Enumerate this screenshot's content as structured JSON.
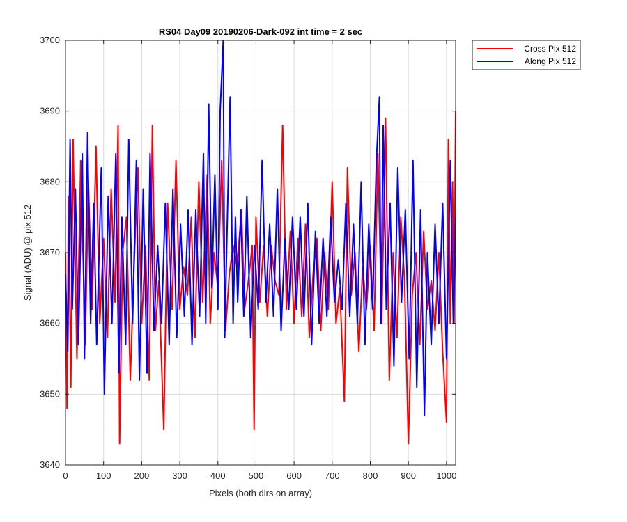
{
  "chart_data": {
    "type": "line",
    "title": "RS04 Day09 20190206-Dark-092 int time = 2 sec",
    "xlabel": "Pixels (both dirs on array)",
    "ylabel": "Signal (ADU) @ pix 512",
    "xlim": [
      0,
      1024
    ],
    "ylim": [
      3640,
      3700
    ],
    "xticks": [
      0,
      100,
      200,
      300,
      400,
      500,
      600,
      700,
      800,
      900,
      1000
    ],
    "yticks": [
      3640,
      3650,
      3660,
      3670,
      3680,
      3690,
      3700
    ],
    "grid": true,
    "legend": "outside-top-right",
    "series": [
      {
        "name": "Cross Pix 512",
        "color": "#ff0000",
        "x": [
          0,
          4,
          8,
          14,
          20,
          30,
          40,
          52,
          60,
          70,
          80,
          90,
          100,
          110,
          120,
          130,
          138,
          142,
          150,
          160,
          170,
          180,
          190,
          200,
          210,
          220,
          228,
          236,
          245,
          258,
          268,
          280,
          290,
          300,
          310,
          320,
          330,
          340,
          350,
          360,
          372,
          380,
          390,
          400,
          410,
          420,
          430,
          440,
          450,
          462,
          470,
          480,
          490,
          495,
          500,
          510,
          520,
          530,
          540,
          550,
          560,
          570,
          580,
          590,
          600,
          610,
          620,
          630,
          640,
          650,
          660,
          670,
          680,
          690,
          700,
          710,
          720,
          732,
          740,
          750,
          760,
          770,
          780,
          790,
          800,
          810,
          820,
          830,
          840,
          850,
          860,
          870,
          880,
          890,
          900,
          910,
          920,
          930,
          940,
          950,
          960,
          970,
          980,
          990,
          1000,
          1005,
          1010,
          1016,
          1020,
          1024
        ],
        "values": [
          3670,
          3648,
          3678,
          3651,
          3686,
          3655,
          3683,
          3657,
          3680,
          3662,
          3685,
          3660,
          3672,
          3658,
          3679,
          3663,
          3688,
          3643,
          3670,
          3675,
          3652,
          3668,
          3682,
          3660,
          3671,
          3652,
          3688,
          3659,
          3666,
          3645,
          3677,
          3662,
          3683,
          3662,
          3668,
          3664,
          3675,
          3658,
          3680,
          3663,
          3681,
          3660,
          3670,
          3665,
          3683,
          3659,
          3667,
          3671,
          3668,
          3676,
          3662,
          3666,
          3671,
          3645,
          3675,
          3663,
          3671,
          3661,
          3671,
          3666,
          3664,
          3688,
          3662,
          3673,
          3660,
          3672,
          3661,
          3674,
          3658,
          3667,
          3672,
          3659,
          3670,
          3662,
          3680,
          3660,
          3665,
          3649,
          3682,
          3664,
          3670,
          3656,
          3668,
          3662,
          3671,
          3659,
          3684,
          3660,
          3689,
          3652,
          3670,
          3658,
          3675,
          3666,
          3643,
          3664,
          3670,
          3657,
          3673,
          3662,
          3666,
          3659,
          3670,
          3656,
          3646,
          3686,
          3660,
          3680,
          3660,
          3690
        ]
      },
      {
        "name": "Along Pix 512",
        "color": "#0000ff",
        "x": [
          0,
          6,
          12,
          18,
          26,
          34,
          44,
          50,
          58,
          66,
          74,
          82,
          94,
          102,
          112,
          122,
          132,
          140,
          148,
          158,
          166,
          176,
          186,
          194,
          204,
          214,
          222,
          232,
          242,
          252,
          262,
          272,
          282,
          292,
          302,
          312,
          322,
          332,
          342,
          352,
          362,
          368,
          376,
          384,
          392,
          400,
          406,
          414,
          418,
          424,
          432,
          440,
          446,
          452,
          460,
          468,
          476,
          486,
          496,
          506,
          516,
          526,
          536,
          546,
          556,
          566,
          576,
          586,
          596,
          606,
          616,
          626,
          636,
          646,
          656,
          666,
          676,
          686,
          696,
          706,
          716,
          726,
          736,
          746,
          756,
          766,
          776,
          786,
          796,
          806,
          816,
          824,
          828,
          834,
          842,
          852,
          862,
          872,
          882,
          892,
          902,
          912,
          922,
          932,
          942,
          950,
          960,
          970,
          980,
          990,
          1000,
          1010,
          1018,
          1024
        ],
        "values": [
          3667,
          3656,
          3686,
          3662,
          3679,
          3657,
          3684,
          3655,
          3687,
          3660,
          3677,
          3657,
          3682,
          3650,
          3678,
          3660,
          3684,
          3653,
          3675,
          3657,
          3686,
          3660,
          3683,
          3652,
          3679,
          3653,
          3684,
          3659,
          3671,
          3660,
          3677,
          3657,
          3679,
          3658,
          3674,
          3661,
          3676,
          3657,
          3676,
          3661,
          3684,
          3660,
          3691,
          3665,
          3681,
          3662,
          3690,
          3700,
          3658,
          3673,
          3692,
          3660,
          3675,
          3663,
          3676,
          3661,
          3678,
          3658,
          3671,
          3662,
          3683,
          3663,
          3674,
          3661,
          3679,
          3659,
          3672,
          3662,
          3675,
          3662,
          3675,
          3661,
          3677,
          3657,
          3673,
          3660,
          3672,
          3661,
          3675,
          3663,
          3669,
          3662,
          3677,
          3661,
          3674,
          3660,
          3680,
          3657,
          3674,
          3662,
          3683,
          3692,
          3660,
          3688,
          3662,
          3677,
          3654,
          3682,
          3663,
          3676,
          3655,
          3683,
          3651,
          3676,
          3647,
          3670,
          3657,
          3674,
          3660,
          3677,
          3655,
          3683,
          3660,
          3675
        ]
      }
    ]
  }
}
